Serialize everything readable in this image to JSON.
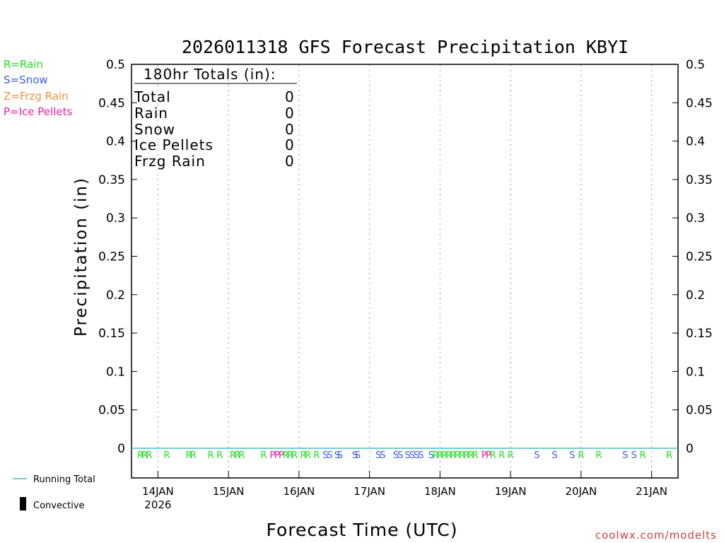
{
  "chart_data": {
    "type": "line",
    "title": "2026011318 GFS Forecast Precipitation KBYI",
    "xlabel": "Forecast Time (UTC)",
    "ylabel": "Precipitation (in)",
    "ylim": [
      0,
      0.5
    ],
    "yticks": [
      0,
      0.05,
      0.1,
      0.15,
      0.2,
      0.25,
      0.3,
      0.35,
      0.4,
      0.45,
      0.5
    ],
    "ytick_labels": [
      "0",
      "0.05",
      "0.1",
      "0.15",
      "0.2",
      "0.25",
      "0.3",
      "0.35",
      "0.4",
      "0.45",
      "0.5"
    ],
    "xlim_hours": [
      -3,
      183
    ],
    "x_hours_per_day": 24,
    "xticks": [
      {
        "hour": 6,
        "label": "14JAN",
        "sublabel": "2026"
      },
      {
        "hour": 30,
        "label": "15JAN"
      },
      {
        "hour": 54,
        "label": "16JAN"
      },
      {
        "hour": 78,
        "label": "17JAN"
      },
      {
        "hour": 102,
        "label": "18JAN"
      },
      {
        "hour": 126,
        "label": "19JAN"
      },
      {
        "hour": 150,
        "label": "20JAN"
      },
      {
        "hour": 174,
        "label": "21JAN"
      }
    ],
    "grid": "vertical dotted at each day",
    "series": [
      {
        "name": "Running Total",
        "color": "#40c0c0",
        "x": [
          0,
          180
        ],
        "values": [
          0,
          0
        ]
      },
      {
        "name": "Convective",
        "color": "#000000",
        "x": [],
        "values": []
      }
    ],
    "ptype_markers": [
      {
        "hour": 0,
        "type": "R"
      },
      {
        "hour": 1.5,
        "type": "R"
      },
      {
        "hour": 3,
        "type": "R"
      },
      {
        "hour": 9,
        "type": "R"
      },
      {
        "hour": 16.5,
        "type": "R"
      },
      {
        "hour": 18,
        "type": "R"
      },
      {
        "hour": 24,
        "type": "R"
      },
      {
        "hour": 27,
        "type": "R"
      },
      {
        "hour": 31.5,
        "type": "R"
      },
      {
        "hour": 33,
        "type": "R"
      },
      {
        "hour": 34.5,
        "type": "R"
      },
      {
        "hour": 42,
        "type": "R"
      },
      {
        "hour": 45,
        "type": "P"
      },
      {
        "hour": 46.5,
        "type": "P"
      },
      {
        "hour": 48,
        "type": "P"
      },
      {
        "hour": 49.5,
        "type": "R"
      },
      {
        "hour": 51,
        "type": "R"
      },
      {
        "hour": 52.5,
        "type": "R"
      },
      {
        "hour": 55.5,
        "type": "R"
      },
      {
        "hour": 57,
        "type": "R"
      },
      {
        "hour": 60,
        "type": "R"
      },
      {
        "hour": 63,
        "type": "S"
      },
      {
        "hour": 64.5,
        "type": "S"
      },
      {
        "hour": 67,
        "type": "S"
      },
      {
        "hour": 68,
        "type": "S"
      },
      {
        "hour": 73,
        "type": "S"
      },
      {
        "hour": 74,
        "type": "S"
      },
      {
        "hour": 81,
        "type": "S"
      },
      {
        "hour": 82.5,
        "type": "S"
      },
      {
        "hour": 87,
        "type": "S"
      },
      {
        "hour": 88.5,
        "type": "S"
      },
      {
        "hour": 91,
        "type": "S"
      },
      {
        "hour": 92.5,
        "type": "S"
      },
      {
        "hour": 94,
        "type": "S"
      },
      {
        "hour": 95.5,
        "type": "S"
      },
      {
        "hour": 99,
        "type": "S"
      },
      {
        "hour": 100.5,
        "type": "R"
      },
      {
        "hour": 102,
        "type": "R"
      },
      {
        "hour": 103.5,
        "type": "R"
      },
      {
        "hour": 105,
        "type": "R"
      },
      {
        "hour": 106.5,
        "type": "R"
      },
      {
        "hour": 108,
        "type": "R"
      },
      {
        "hour": 109.5,
        "type": "R"
      },
      {
        "hour": 111,
        "type": "R"
      },
      {
        "hour": 112.5,
        "type": "R"
      },
      {
        "hour": 114,
        "type": "R"
      },
      {
        "hour": 117,
        "type": "P"
      },
      {
        "hour": 118.5,
        "type": "P"
      },
      {
        "hour": 120,
        "type": "R"
      },
      {
        "hour": 123,
        "type": "R"
      },
      {
        "hour": 126,
        "type": "R"
      },
      {
        "hour": 135,
        "type": "S"
      },
      {
        "hour": 141,
        "type": "S"
      },
      {
        "hour": 147,
        "type": "S"
      },
      {
        "hour": 150,
        "type": "R"
      },
      {
        "hour": 156,
        "type": "R"
      },
      {
        "hour": 165,
        "type": "S"
      },
      {
        "hour": 168,
        "type": "S"
      },
      {
        "hour": 171,
        "type": "R"
      },
      {
        "hour": 180,
        "type": "R"
      }
    ]
  },
  "ptype_legend": [
    {
      "code": "R",
      "text": "R=Rain",
      "color": "#20e020"
    },
    {
      "code": "S",
      "text": "S=Snow",
      "color": "#4060e0"
    },
    {
      "code": "Z",
      "text": "Z=Frzg Rain",
      "color": "#f09040"
    },
    {
      "code": "P",
      "text": "P=Ice Pellets",
      "color": "#f020a0"
    }
  ],
  "totals": {
    "header": "180hr Totals (in):",
    "rows": [
      {
        "label": "Total",
        "value": "0"
      },
      {
        "label": "Rain",
        "value": "0"
      },
      {
        "label": "Snow",
        "value": "0"
      },
      {
        "label": "Ice Pellets",
        "value": "0"
      },
      {
        "label": "Frzg Rain",
        "value": "0"
      }
    ]
  },
  "line_legend": {
    "running_total": "Running Total",
    "convective": "Convective"
  },
  "credit": "coolwx.com/modelts",
  "colors": {
    "running_total": "#40c0c0",
    "credit": "#d04040",
    "grid": "#b0b0b0"
  }
}
